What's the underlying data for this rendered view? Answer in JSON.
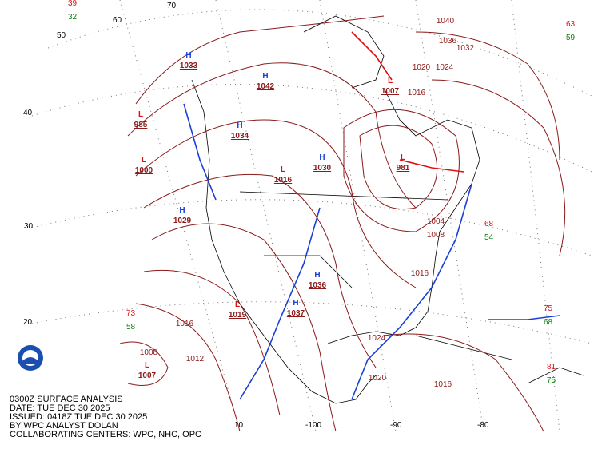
{
  "caption": [
    "0300Z SURFACE ANALYSIS",
    "DATE: TUE DEC 30 2025",
    "ISSUED: 0418Z TUE DEC 30 2025",
    "BY WPC ANALYST DOLAN",
    "COLLABORATING CENTERS: WPC, NHC, OPC"
  ],
  "lat_labels": [
    "70",
    "60",
    "50",
    "40",
    "30",
    "20"
  ],
  "lon_labels": [
    "10",
    "-100",
    "-90",
    "-80"
  ],
  "highs": [
    {
      "symbol": "H",
      "pressure": "1042"
    },
    {
      "symbol": "H",
      "pressure": "1034"
    },
    {
      "symbol": "H",
      "pressure": "1030"
    },
    {
      "symbol": "H",
      "pressure": "1029"
    },
    {
      "symbol": "H",
      "pressure": "1036"
    },
    {
      "symbol": "H",
      "pressure": "1037"
    },
    {
      "symbol": "H",
      "pressure": "1033"
    }
  ],
  "lows": [
    {
      "symbol": "L",
      "pressure": "985"
    },
    {
      "symbol": "L",
      "pressure": "1000"
    },
    {
      "symbol": "L",
      "pressure": "1016"
    },
    {
      "symbol": "L",
      "pressure": "1007"
    },
    {
      "symbol": "L",
      "pressure": "981"
    },
    {
      "symbol": "L",
      "pressure": "1007"
    },
    {
      "symbol": "L",
      "pressure": "1019"
    }
  ],
  "isobar_labels": [
    "1040",
    "1036",
    "1032",
    "1024",
    "1020",
    "1016",
    "1012",
    "1016",
    "1008",
    "1024",
    "1020",
    "1016",
    "1016",
    "1004",
    "1008"
  ],
  "stations": [
    {
      "temp": "63",
      "dew": "59"
    },
    {
      "temp": "68",
      "dew": "54"
    },
    {
      "temp": "75",
      "dew": "68"
    },
    {
      "temp": "73",
      "dew": "58"
    },
    {
      "temp": "81",
      "dew": "75"
    },
    {
      "temp": "39",
      "dew": "32"
    }
  ]
}
